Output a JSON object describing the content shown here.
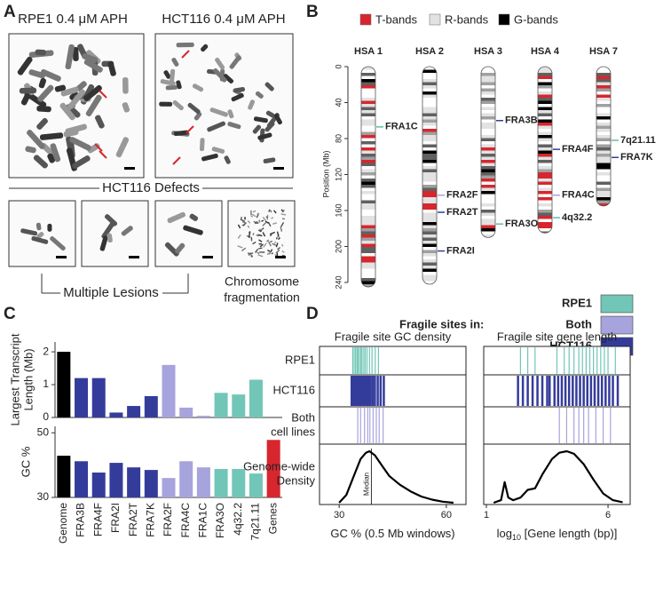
{
  "panel_a": {
    "label": "A",
    "titles": [
      "RPE1 0.4 μM APH",
      "HCT116 0.4 μM APH"
    ],
    "defects_title": "HCT116 Defects",
    "multiple_lesions": "Multiple Lesions",
    "fragmentation": [
      "Chromosome",
      "fragmentation"
    ]
  },
  "panel_b": {
    "label": "B",
    "legend": [
      {
        "name": "T-bands",
        "color": "#d7262e"
      },
      {
        "name": "R-bands",
        "color": "#e2e2e2"
      },
      {
        "name": "G-bands",
        "color": "#000000"
      }
    ],
    "ylabel": "Position (Mb)",
    "ylim": [
      0,
      240
    ],
    "yticks": [
      0,
      40,
      80,
      120,
      160,
      200,
      240
    ],
    "chromosomes": [
      {
        "name": "HSA 1",
        "length": 245,
        "sites": [
          {
            "name": "FRA1C",
            "position": 67,
            "color": "#5fbdac"
          }
        ]
      },
      {
        "name": "HSA 2",
        "length": 242,
        "sites": [
          {
            "name": "FRA2F",
            "position": 143,
            "color": "#a7a3dc"
          },
          {
            "name": "FRA2T",
            "position": 162,
            "color": "#343c9b"
          },
          {
            "name": "FRA2I",
            "position": 205,
            "color": "#343c9b"
          }
        ]
      },
      {
        "name": "HSA 3",
        "length": 190,
        "sites": [
          {
            "name": "FRA3B",
            "position": 60,
            "color": "#343c9b"
          },
          {
            "name": "FRA3O",
            "position": 175,
            "color": "#5fbdac"
          }
        ]
      },
      {
        "name": "HSA 4",
        "length": 185,
        "sites": [
          {
            "name": "FRA4F",
            "position": 92,
            "color": "#343c9b"
          },
          {
            "name": "FRA4C",
            "position": 143,
            "color": "#a7a3dc"
          },
          {
            "name": "4q32.2",
            "position": 168,
            "color": "#5fbdac"
          }
        ]
      },
      {
        "name": "HSA 7",
        "length": 155,
        "sites": [
          {
            "name": "7q21.11",
            "position": 82,
            "color": "#5fbdac"
          },
          {
            "name": "FRA7K",
            "position": 101,
            "color": "#343c9b"
          }
        ]
      }
    ],
    "fragile_legend": {
      "title": "Fragile sites in:",
      "items": [
        {
          "name": "RPE1",
          "color": "#72c6b7"
        },
        {
          "name": "Both",
          "color": "#a7a3dc"
        },
        {
          "name": "HCT116",
          "color": "#343c9b"
        }
      ]
    }
  },
  "panel_c_label": "C",
  "chart_data": [
    {
      "type": "bar",
      "ylabel": [
        "Largest Transcript",
        "Length (Mb)"
      ],
      "ylim": [
        0,
        2.3
      ],
      "yticks": [
        0,
        1,
        2
      ],
      "values": [
        2.0,
        1.2,
        1.2,
        0.15,
        0.35,
        0.65,
        1.6,
        0.3,
        0.05,
        0.75,
        0.7,
        1.15,
        null
      ],
      "colors": [
        "#000000",
        "#343c9b",
        "#343c9b",
        "#343c9b",
        "#343c9b",
        "#343c9b",
        "#a7a3dc",
        "#a7a3dc",
        "#a7a3dc",
        "#72c6b7",
        "#72c6b7",
        "#72c6b7",
        "#d7262e"
      ]
    },
    {
      "type": "bar",
      "ylabel": "GC %",
      "ylim": [
        30,
        52
      ],
      "yticks": [
        30,
        50
      ],
      "categories": [
        "Genome",
        "FRA3B",
        "FRA4F",
        "FRA2I",
        "FRA2T",
        "FRA7K",
        "FRA2F",
        "FRA4C",
        "FRA1C",
        "FRA3O",
        "4q32.2",
        "7q21.11",
        "Genes"
      ],
      "values": [
        42.9,
        41.2,
        37.7,
        40.7,
        39.3,
        38.5,
        36.0,
        41.2,
        39.3,
        38.8,
        38.8,
        37.4,
        47.8
      ],
      "colors": [
        "#000000",
        "#343c9b",
        "#343c9b",
        "#343c9b",
        "#343c9b",
        "#343c9b",
        "#a7a3dc",
        "#a7a3dc",
        "#a7a3dc",
        "#72c6b7",
        "#72c6b7",
        "#72c6b7",
        "#d7262e"
      ]
    }
  ],
  "panel_d": {
    "label": "D",
    "row_labels": [
      "RPE1",
      "HCT116",
      [
        "Both",
        "cell lines"
      ],
      [
        "Genome-wide",
        "Density"
      ]
    ],
    "row_colors": [
      "#72c6b7",
      "#343c9b",
      "#a7a3dc"
    ],
    "plots": [
      {
        "title": "Fragile site GC density",
        "xlabel": [
          "GC % (0.5 Mb windows)"
        ],
        "xlim": [
          24.5,
          65.5
        ],
        "xticks": [
          30,
          60
        ],
        "median": 39,
        "median_label": "Median",
        "rugs": [
          [
            33.8,
            34.2,
            34.6,
            35.0,
            35.3,
            35.7,
            36.1,
            36.4,
            36.9,
            37.3,
            37.8,
            38.5,
            39.2,
            40.1,
            41.0
          ],
          [
            33.5,
            33.9,
            34.3,
            34.7,
            35.0,
            35.4,
            35.8,
            36.2,
            36.6,
            37.0,
            37.4,
            37.9,
            38.3,
            38.8,
            39.4,
            40.0,
            40.8,
            41.6,
            42.5
          ],
          [
            35.2,
            36.0,
            37.1,
            38.0,
            38.6,
            39.5,
            40.4,
            41.2,
            42.3
          ]
        ],
        "density": {
          "x": [
            30,
            32,
            34,
            36,
            37.5,
            38.5,
            40,
            42,
            44,
            47,
            50,
            53,
            56,
            59,
            62
          ],
          "y": [
            0,
            0.15,
            0.5,
            0.85,
            0.97,
            1.0,
            0.92,
            0.72,
            0.52,
            0.35,
            0.22,
            0.12,
            0.06,
            0.02,
            0
          ]
        }
      },
      {
        "title": "Fragile site gene length",
        "xlabel": [
          "log",
          "10",
          " [Gene length (bp)]"
        ],
        "xlim": [
          0.89,
          6.91
        ],
        "xticks": [
          1,
          6
        ],
        "rugs": [
          [
            2.4,
            2.7,
            3.0,
            3.9,
            4.2,
            4.4,
            4.6,
            4.8,
            4.95,
            5.1,
            5.25,
            5.4,
            5.55,
            5.7,
            5.85,
            6.0,
            6.3
          ],
          [
            2.3,
            2.5,
            2.7,
            2.9,
            3.1,
            3.3,
            3.5,
            3.6,
            3.8,
            3.95,
            4.1,
            4.25,
            4.4,
            4.55,
            4.7,
            4.85,
            5.0,
            5.15,
            5.3,
            5.45,
            5.6,
            5.75,
            5.9,
            6.05,
            6.2,
            6.4
          ],
          [
            4.0,
            4.3,
            4.6,
            4.8,
            5.0,
            5.2,
            5.5,
            5.8,
            6.1
          ]
        ],
        "density": {
          "x": [
            1.3,
            1.6,
            1.75,
            1.9,
            2.1,
            2.4,
            2.7,
            3.0,
            3.3,
            3.7,
            4.0,
            4.3,
            4.6,
            5.0,
            5.4,
            5.8,
            6.2,
            6.6
          ],
          "y": [
            0,
            0.05,
            0.4,
            0.1,
            0.05,
            0.1,
            0.25,
            0.28,
            0.55,
            0.85,
            0.97,
            1.0,
            0.95,
            0.75,
            0.45,
            0.18,
            0.05,
            0.01
          ]
        }
      }
    ]
  }
}
